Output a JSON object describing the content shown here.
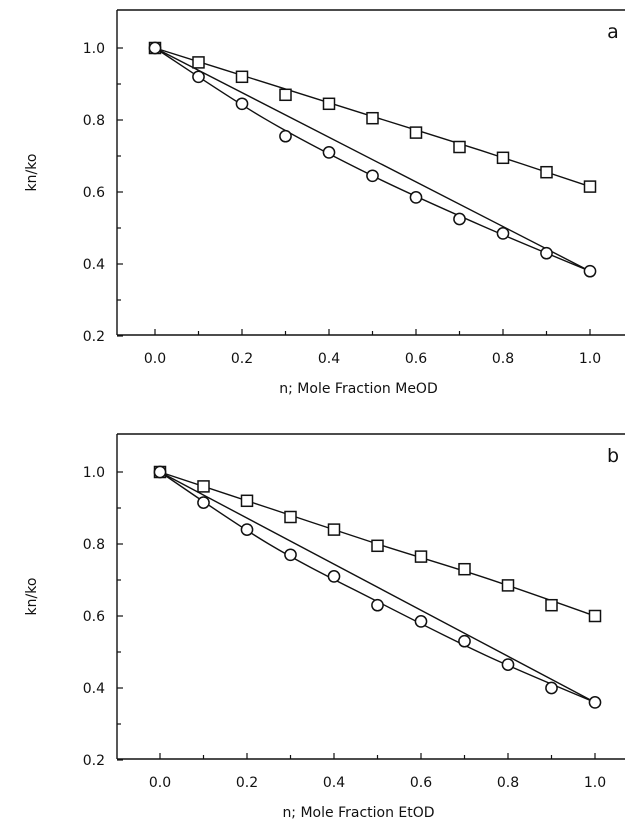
{
  "chart_data": [
    {
      "type": "scatter",
      "panel_label": "a",
      "xlabel": "n; Mole Fraction MeOD",
      "ylabel": "kn/ko",
      "xlim": [
        -0.1,
        1.05
      ],
      "ylim": [
        0.2,
        1.1
      ],
      "xticks": [
        "0.0",
        "0.2",
        "0.4",
        "0.6",
        "0.8",
        "1.0"
      ],
      "yticks": [
        "0.2",
        "0.4",
        "0.6",
        "0.8",
        "1.0"
      ],
      "x": [
        0.0,
        0.1,
        0.2,
        0.3,
        0.4,
        0.5,
        0.6,
        0.7,
        0.8,
        0.9,
        1.0
      ],
      "series": [
        {
          "marker": "square",
          "values": [
            1.0,
            0.96,
            0.92,
            0.87,
            0.845,
            0.805,
            0.765,
            0.725,
            0.695,
            0.655,
            0.615
          ]
        },
        {
          "marker": "circle",
          "values": [
            1.0,
            0.92,
            0.845,
            0.755,
            0.71,
            0.645,
            0.585,
            0.525,
            0.485,
            0.43,
            0.38
          ]
        }
      ],
      "lines": [
        {
          "style": "fit",
          "x": [
            0.0,
            0.25,
            0.5,
            0.75,
            1.0
          ],
          "y": [
            1.0,
            0.905,
            0.81,
            0.715,
            0.615
          ]
        },
        {
          "style": "fit",
          "x": [
            0.0,
            0.25,
            0.5,
            0.75,
            1.0
          ],
          "y": [
            1.0,
            0.805,
            0.645,
            0.507,
            0.38
          ]
        },
        {
          "style": "linear",
          "x": [
            0.0,
            1.0
          ],
          "y": [
            1.0,
            0.38
          ]
        }
      ]
    },
    {
      "type": "scatter",
      "panel_label": "b",
      "xlabel": "n; Mole Fraction EtOD",
      "ylabel": "kn/ko",
      "xlim": [
        -0.1,
        1.05
      ],
      "ylim": [
        0.2,
        1.1
      ],
      "xticks": [
        "0.0",
        "0.2",
        "0.4",
        "0.6",
        "0.8",
        "1.0"
      ],
      "yticks": [
        "0.2",
        "0.4",
        "0.6",
        "0.8",
        "1.0"
      ],
      "x": [
        0.0,
        0.1,
        0.2,
        0.3,
        0.4,
        0.5,
        0.6,
        0.7,
        0.8,
        0.9,
        1.0
      ],
      "series": [
        {
          "marker": "square",
          "values": [
            1.0,
            0.96,
            0.92,
            0.875,
            0.84,
            0.795,
            0.765,
            0.73,
            0.685,
            0.63,
            0.6
          ]
        },
        {
          "marker": "circle",
          "values": [
            1.0,
            0.915,
            0.84,
            0.77,
            0.71,
            0.63,
            0.585,
            0.53,
            0.465,
            0.4,
            0.36
          ]
        }
      ],
      "lines": [
        {
          "style": "fit",
          "x": [
            0.0,
            0.25,
            0.5,
            0.75,
            1.0
          ],
          "y": [
            1.0,
            0.9,
            0.8,
            0.705,
            0.6
          ]
        },
        {
          "style": "fit",
          "x": [
            0.0,
            0.25,
            0.5,
            0.75,
            1.0
          ],
          "y": [
            1.0,
            0.8,
            0.64,
            0.49,
            0.36
          ]
        },
        {
          "style": "linear",
          "x": [
            0.0,
            1.0
          ],
          "y": [
            1.0,
            0.36
          ]
        }
      ]
    }
  ]
}
